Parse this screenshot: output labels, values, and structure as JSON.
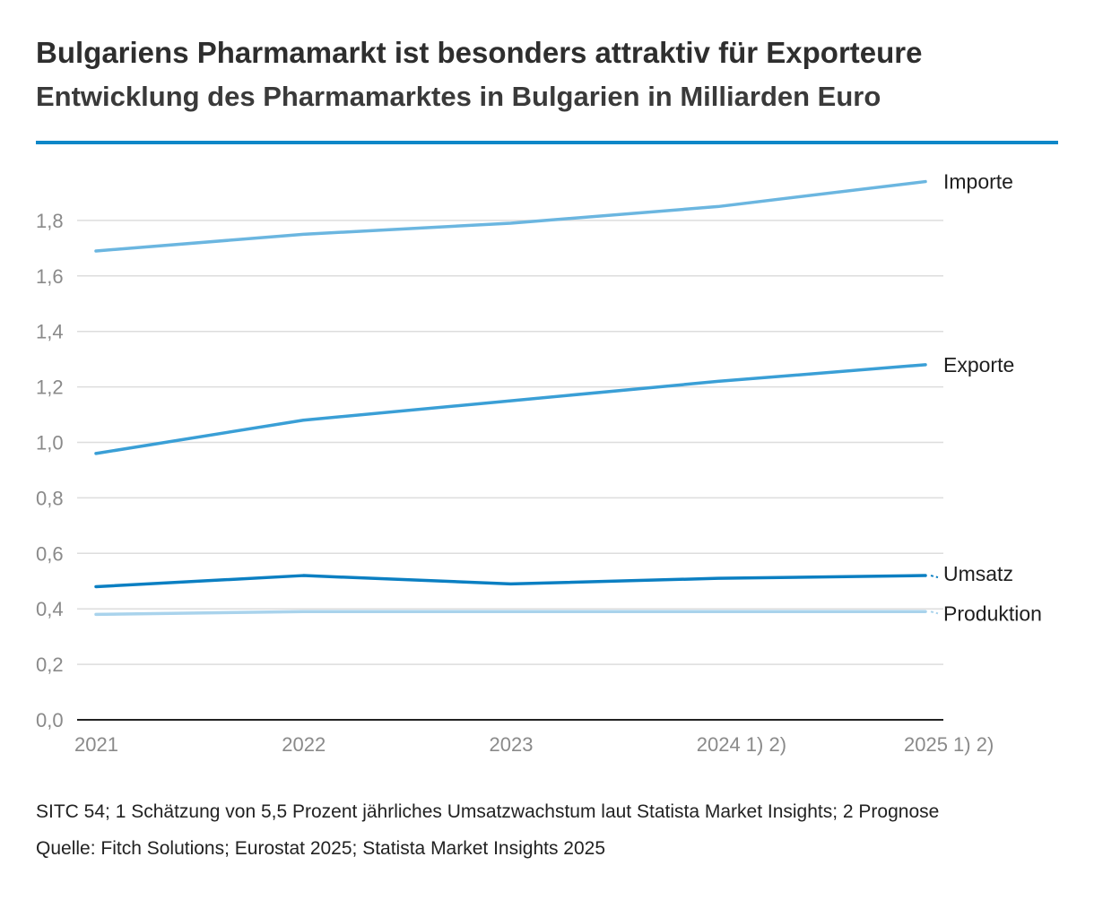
{
  "header": {
    "title": "Bulgariens Pharmamarkt ist besonders attraktiv für Exporteure",
    "subtitle": "Entwicklung des Pharmamarktes in Bulgarien in Milliarden Euro"
  },
  "footer": {
    "note": "SITC 54; 1 Schätzung von 5,5 Prozent jährliches Umsatzwachstum laut Statista Market Insights; 2 Prognose",
    "source": "Quelle: Fitch Solutions; Eurostat 2025; Statista Market Insights 2025"
  },
  "colors": {
    "accent_rule": "#0d87c8",
    "grid": "#dddddd",
    "axis": "#222222",
    "tick_text": "#8a8a8a"
  },
  "chart_data": {
    "type": "line",
    "title": "Bulgariens Pharmamarkt ist besonders attraktiv für Exporteure",
    "subtitle": "Entwicklung des Pharmamarktes in Bulgarien in Milliarden Euro",
    "xlabel": "",
    "ylabel": "",
    "categories": [
      "2021",
      "2022",
      "2023",
      "2024 1) 2)",
      "2025 1) 2)"
    ],
    "ylim": [
      0,
      2.0
    ],
    "yticks": [
      0.0,
      0.2,
      0.4,
      0.6,
      0.8,
      1.0,
      1.2,
      1.4,
      1.6,
      1.8
    ],
    "ytick_labels": [
      "0,0",
      "0,2",
      "0,4",
      "0,6",
      "0,8",
      "1,0",
      "1,2",
      "1,4",
      "1,6",
      "1,8"
    ],
    "grid": true,
    "legend": "direct labels at right end of each line",
    "series": [
      {
        "name": "Importe",
        "values": [
          1.69,
          1.75,
          1.79,
          1.85,
          1.94
        ],
        "color": "#6bb6e0",
        "leader": false
      },
      {
        "name": "Exporte",
        "values": [
          0.96,
          1.08,
          1.15,
          1.22,
          1.28
        ],
        "color": "#3a9fd6",
        "leader": false
      },
      {
        "name": "Umsatz",
        "values": [
          0.48,
          0.52,
          0.49,
          0.51,
          0.52
        ],
        "color": "#0b7fc2",
        "leader": true
      },
      {
        "name": "Produktion",
        "values": [
          0.38,
          0.39,
          0.39,
          0.39,
          0.39
        ],
        "color": "#a9d3ec",
        "leader": true
      }
    ]
  }
}
